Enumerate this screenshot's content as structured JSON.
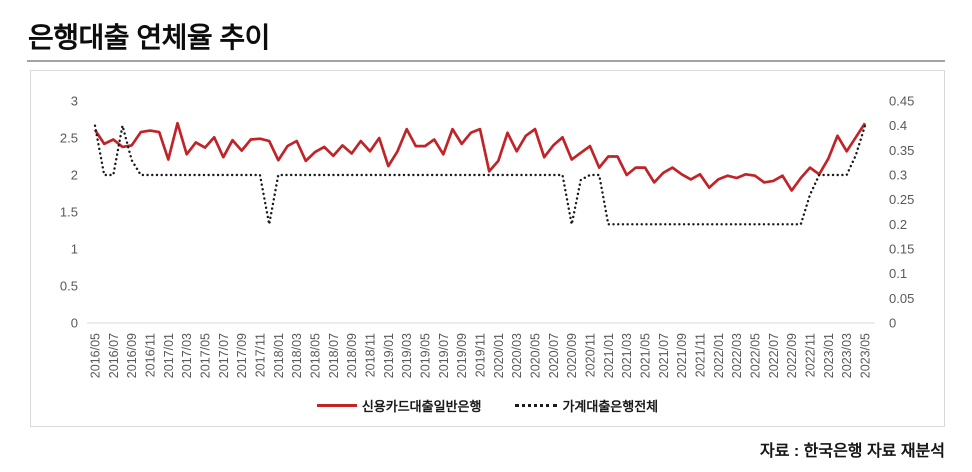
{
  "title": "은행대출 연체율 추이",
  "source": "자료 : 한국은행 자료 재분석",
  "legend": [
    {
      "label": "신용카드대출일반은행",
      "style": "solid",
      "color": "#c02428"
    },
    {
      "label": "가계대출은행전체",
      "style": "dotted",
      "color": "#1a1a1a"
    }
  ],
  "colors": {
    "accent_red": "#c02428",
    "dotted_black": "#1a1a1a",
    "axis_text": "#595959",
    "box_border": "#d9d9d9"
  },
  "chart_data": {
    "type": "line",
    "title": "은행대출 연체율 추이",
    "x_label_every": 2,
    "x": [
      "2016/05",
      "2016/06",
      "2016/07",
      "2016/08",
      "2016/09",
      "2016/10",
      "2016/11",
      "2016/12",
      "2017/01",
      "2017/02",
      "2017/03",
      "2017/04",
      "2017/05",
      "2017/06",
      "2017/07",
      "2017/08",
      "2017/09",
      "2017/10",
      "2017/11",
      "2017/12",
      "2018/01",
      "2018/02",
      "2018/03",
      "2018/04",
      "2018/05",
      "2018/06",
      "2018/07",
      "2018/08",
      "2018/09",
      "2018/10",
      "2018/11",
      "2018/12",
      "2019/01",
      "2019/02",
      "2019/03",
      "2019/04",
      "2019/05",
      "2019/06",
      "2019/07",
      "2019/08",
      "2019/09",
      "2019/10",
      "2019/11",
      "2019/12",
      "2020/01",
      "2020/02",
      "2020/03",
      "2020/04",
      "2020/05",
      "2020/06",
      "2020/07",
      "2020/08",
      "2020/09",
      "2020/10",
      "2020/11",
      "2020/12",
      "2021/01",
      "2021/02",
      "2021/03",
      "2021/04",
      "2021/05",
      "2021/06",
      "2021/07",
      "2021/08",
      "2021/09",
      "2021/10",
      "2021/11",
      "2021/12",
      "2022/01",
      "2022/02",
      "2022/03",
      "2022/04",
      "2022/05",
      "2022/06",
      "2022/07",
      "2022/08",
      "2022/09",
      "2022/10",
      "2022/11",
      "2022/12",
      "2023/01",
      "2023/02",
      "2023/03",
      "2023/04",
      "2023/05"
    ],
    "series": [
      {
        "id": "card-loans",
        "name": "신용카드대출일반은행",
        "axis": "left",
        "style": "solid",
        "color": "#c02428",
        "values": [
          2.61,
          2.42,
          2.48,
          2.38,
          2.4,
          2.58,
          2.6,
          2.58,
          2.21,
          2.7,
          2.28,
          2.44,
          2.37,
          2.51,
          2.24,
          2.47,
          2.33,
          2.48,
          2.49,
          2.46,
          2.2,
          2.39,
          2.46,
          2.19,
          2.31,
          2.38,
          2.26,
          2.4,
          2.29,
          2.46,
          2.32,
          2.5,
          2.12,
          2.32,
          2.62,
          2.39,
          2.39,
          2.48,
          2.28,
          2.62,
          2.42,
          2.57,
          2.62,
          2.05,
          2.19,
          2.57,
          2.32,
          2.53,
          2.62,
          2.24,
          2.4,
          2.51,
          2.21,
          2.3,
          2.39,
          2.1,
          2.25,
          2.25,
          2.0,
          2.1,
          2.1,
          1.9,
          2.03,
          2.1,
          2.01,
          1.94,
          2.01,
          1.83,
          1.94,
          1.99,
          1.96,
          2.01,
          1.99,
          1.9,
          1.92,
          1.99,
          1.79,
          1.96,
          2.1,
          2.01,
          2.22,
          2.53,
          2.32,
          2.51,
          2.7
        ]
      },
      {
        "id": "household-loans",
        "name": "가계대출은행전체",
        "axis": "right",
        "style": "dotted",
        "color": "#1a1a1a",
        "values": [
          0.4,
          0.3,
          0.3,
          0.4,
          0.33,
          0.3,
          0.3,
          0.3,
          0.3,
          0.3,
          0.3,
          0.3,
          0.3,
          0.3,
          0.3,
          0.3,
          0.3,
          0.3,
          0.3,
          0.2,
          0.3,
          0.3,
          0.3,
          0.3,
          0.3,
          0.3,
          0.3,
          0.3,
          0.3,
          0.3,
          0.3,
          0.3,
          0.3,
          0.3,
          0.3,
          0.3,
          0.3,
          0.3,
          0.3,
          0.3,
          0.3,
          0.3,
          0.3,
          0.3,
          0.3,
          0.3,
          0.3,
          0.3,
          0.3,
          0.3,
          0.3,
          0.3,
          0.2,
          0.29,
          0.3,
          0.3,
          0.2,
          0.2,
          0.2,
          0.2,
          0.2,
          0.2,
          0.2,
          0.2,
          0.2,
          0.2,
          0.2,
          0.2,
          0.2,
          0.2,
          0.2,
          0.2,
          0.2,
          0.2,
          0.2,
          0.2,
          0.2,
          0.2,
          0.26,
          0.3,
          0.3,
          0.3,
          0.3,
          0.34,
          0.4
        ]
      }
    ],
    "left_axis": {
      "min": 0,
      "max": 3,
      "ticks": [
        3,
        2.5,
        2,
        1.5,
        1,
        0.5,
        0
      ]
    },
    "right_axis": {
      "min": 0,
      "max": 0.45,
      "ticks": [
        0.45,
        0.4,
        0.35,
        0.3,
        0.25,
        0.2,
        0.15,
        0.1,
        0.05,
        0
      ]
    },
    "grid": "baseline-only",
    "legend_position": "bottom-center"
  }
}
